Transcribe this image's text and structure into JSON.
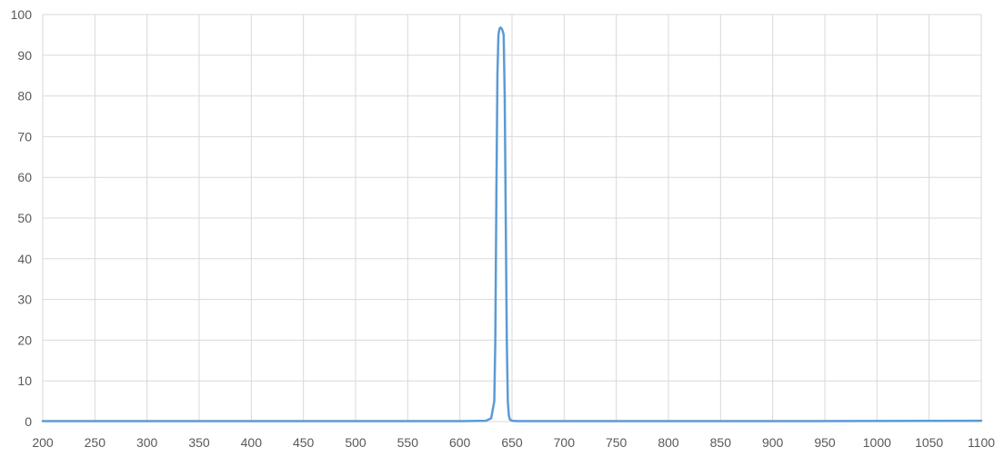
{
  "chart_data": {
    "type": "line",
    "title": "",
    "xlabel": "",
    "ylabel": "",
    "xlim": [
      200,
      1100
    ],
    "ylim": [
      0,
      100
    ],
    "x_ticks": [
      200,
      250,
      300,
      350,
      400,
      450,
      500,
      550,
      600,
      650,
      700,
      750,
      800,
      850,
      900,
      950,
      1000,
      1050,
      1100
    ],
    "y_ticks": [
      0,
      10,
      20,
      30,
      40,
      50,
      60,
      70,
      80,
      90,
      100
    ],
    "grid": true,
    "legend": "none",
    "series_color": "#5b9bd5",
    "series": [
      {
        "name": "",
        "x": [
          200,
          400,
          600,
          625,
          630,
          633,
          634,
          635,
          636,
          637,
          638,
          639,
          640,
          641,
          642,
          643,
          644,
          645,
          646,
          647,
          648,
          650,
          655,
          700,
          900,
          1100
        ],
        "y": [
          0.1,
          0.1,
          0.1,
          0.2,
          0.8,
          5,
          20,
          55,
          85,
          95,
          96.5,
          96.8,
          96.6,
          96,
          95,
          80,
          50,
          20,
          5,
          1.5,
          0.5,
          0.2,
          0.1,
          0.1,
          0.1,
          0.2
        ]
      }
    ]
  }
}
